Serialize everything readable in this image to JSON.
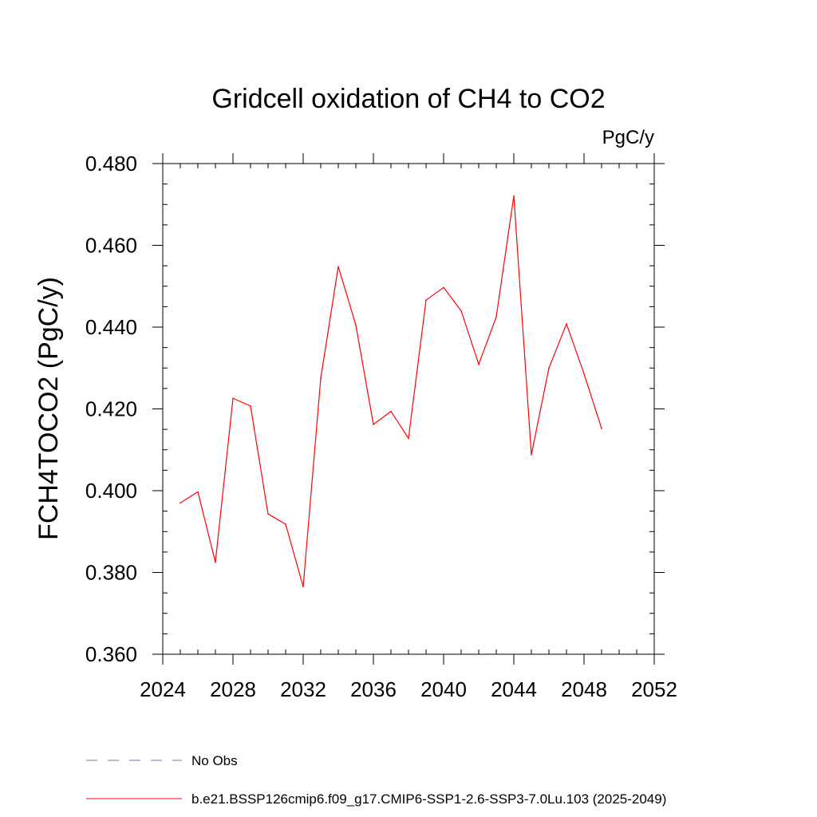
{
  "chart_data": {
    "type": "line",
    "title": "Gridcell oxidation of CH4 to CO2",
    "units": "PgC/y",
    "xlabel": "",
    "ylabel": "FCH4TOCO2  (PgC/y)",
    "xlim": [
      2024,
      2052
    ],
    "ylim": [
      0.36,
      0.48
    ],
    "x_ticks": [
      2024,
      2028,
      2032,
      2036,
      2040,
      2044,
      2048,
      2052
    ],
    "x_tick_labels": [
      "2024",
      "2028",
      "2032",
      "2036",
      "2040",
      "2044",
      "2048",
      "2052"
    ],
    "x_minor_step": 1,
    "y_ticks": [
      0.36,
      0.38,
      0.4,
      0.42,
      0.44,
      0.46,
      0.48
    ],
    "y_tick_labels": [
      "0.360",
      "0.380",
      "0.400",
      "0.420",
      "0.440",
      "0.460",
      "0.480"
    ],
    "y_minor_step": 0.005,
    "grid": false,
    "series": [
      {
        "name": "b.e21.BSSP126cmip6.f09_g17.CMIP6-SSP1-2.6-SSP3-7.0Lu.103 (2025-2049)",
        "color": "#ff0000",
        "style": "solid",
        "x": [
          2025,
          2026,
          2027,
          2028,
          2029,
          2030,
          2031,
          2032,
          2033,
          2034,
          2035,
          2036,
          2037,
          2038,
          2039,
          2040,
          2041,
          2042,
          2043,
          2044,
          2045,
          2046,
          2047,
          2048,
          2049
        ],
        "y": [
          0.397,
          0.3997,
          0.3825,
          0.4226,
          0.4207,
          0.3943,
          0.3918,
          0.3765,
          0.4275,
          0.4548,
          0.4405,
          0.4162,
          0.4194,
          0.4128,
          0.4466,
          0.4497,
          0.444,
          0.4309,
          0.4425,
          0.4721,
          0.4088,
          0.43,
          0.4408,
          0.4286,
          0.4152
        ]
      }
    ],
    "legend": [
      {
        "label": "No Obs",
        "color": "#7b6fb5",
        "style": "dashed"
      },
      {
        "label": "b.e21.BSSP126cmip6.f09_g17.CMIP6-SSP1-2.6-SSP3-7.0Lu.103 (2025-2049)",
        "color": "#ff0000",
        "style": "solid"
      }
    ],
    "legend_position": "bottom-left"
  }
}
